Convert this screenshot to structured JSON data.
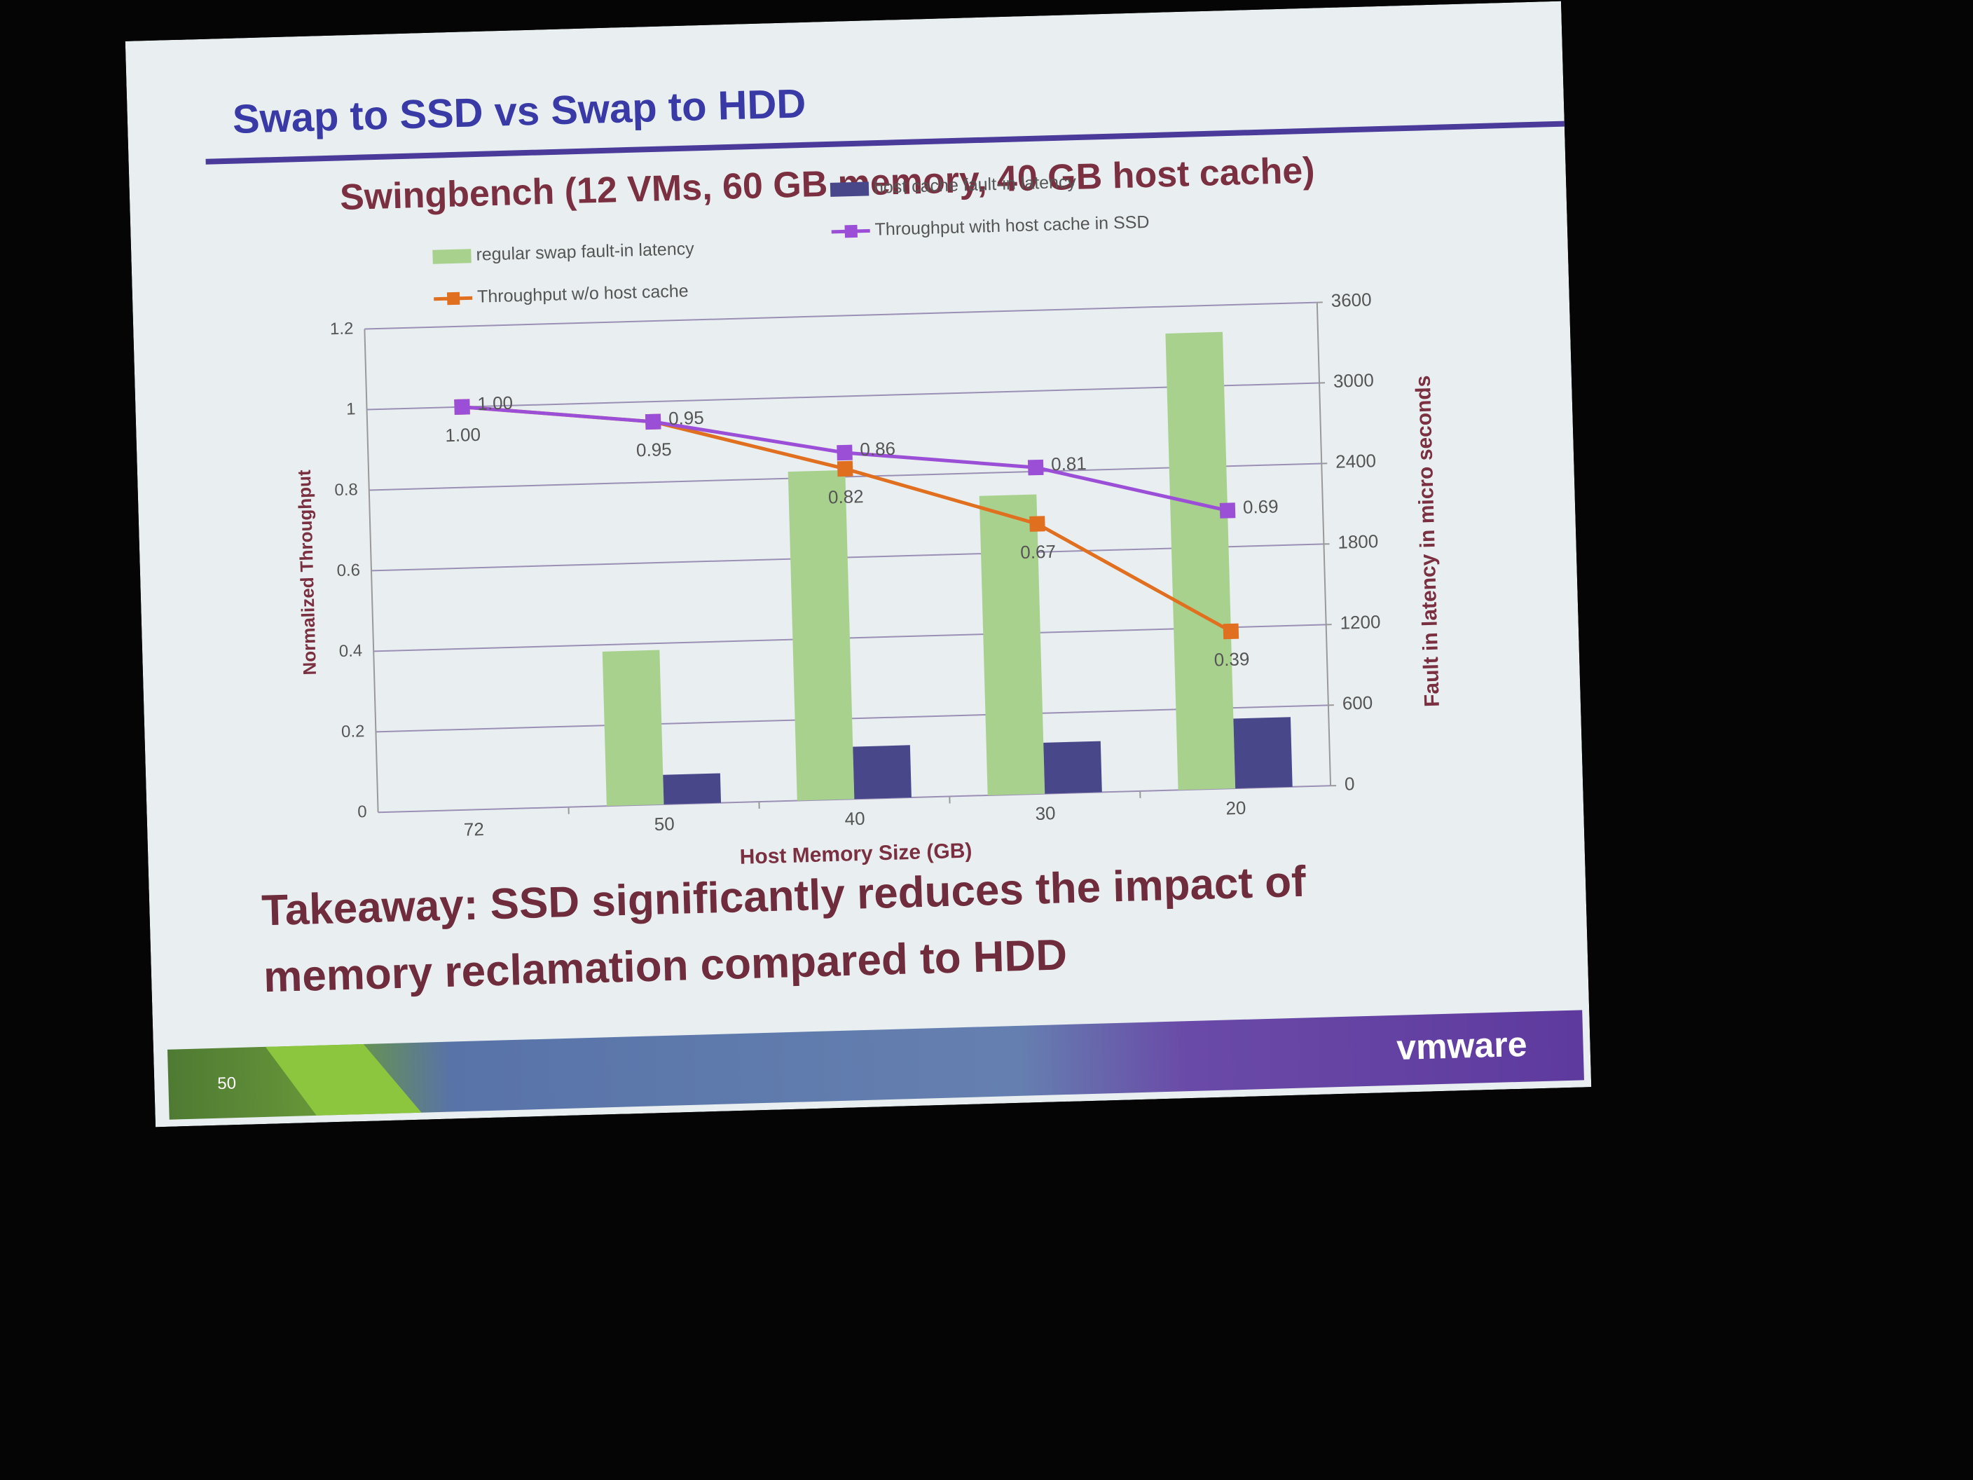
{
  "slide": {
    "title": "Swap to SSD vs Swap to HDD",
    "takeaway": [
      "Takeaway: SSD significantly reduces the impact of",
      "memory reclamation compared to HDD"
    ],
    "page_number": "50",
    "logo": "vmware"
  },
  "chart_data": {
    "type": "bar",
    "title": "Swingbench (12 VMs, 60 GB memory, 40 GB host cache)",
    "x_label": "Host Memory Size (GB)",
    "y_label": "Normalized Throughput",
    "y2_label": "Fault in latency in micro seconds",
    "categories": [
      "72",
      "50",
      "40",
      "30",
      "20"
    ],
    "series": [
      {
        "name": "regular  swap fault-in latency",
        "type": "bar",
        "axis": "y2",
        "color": "#a9d18e",
        "values": [
          null,
          1150,
          2450,
          2230,
          3400
        ]
      },
      {
        "name": "host cache fault-in latency",
        "type": "bar",
        "axis": "y2",
        "color": "#47478a",
        "values": [
          null,
          220,
          390,
          380,
          520
        ]
      },
      {
        "name": "Throughput w/o host cache",
        "type": "line",
        "axis": "y",
        "color": "#e07020",
        "values": [
          1,
          0.95,
          0.82,
          0.67,
          0.39
        ],
        "value_labels": [
          "1.00",
          "0.95",
          "0.82",
          "0.67",
          "0.39"
        ]
      },
      {
        "name": "Throughput with host cache in SSD",
        "type": "line",
        "axis": "y",
        "color": "#9b4fd6",
        "values": [
          1,
          0.95,
          0.86,
          0.81,
          0.69
        ],
        "value_labels": [
          "1.00",
          "0.95",
          "0.86",
          "0.81",
          "0.69"
        ]
      }
    ],
    "ylim": [
      0,
      1.2
    ],
    "yticks": [
      0,
      0.2,
      0.4,
      0.6,
      0.8,
      1,
      1.2
    ],
    "y2lim": [
      0,
      3600
    ],
    "y2ticks": [
      0,
      600,
      1200,
      1800,
      2400,
      3000,
      3600
    ],
    "grid": true,
    "legend": "top"
  }
}
